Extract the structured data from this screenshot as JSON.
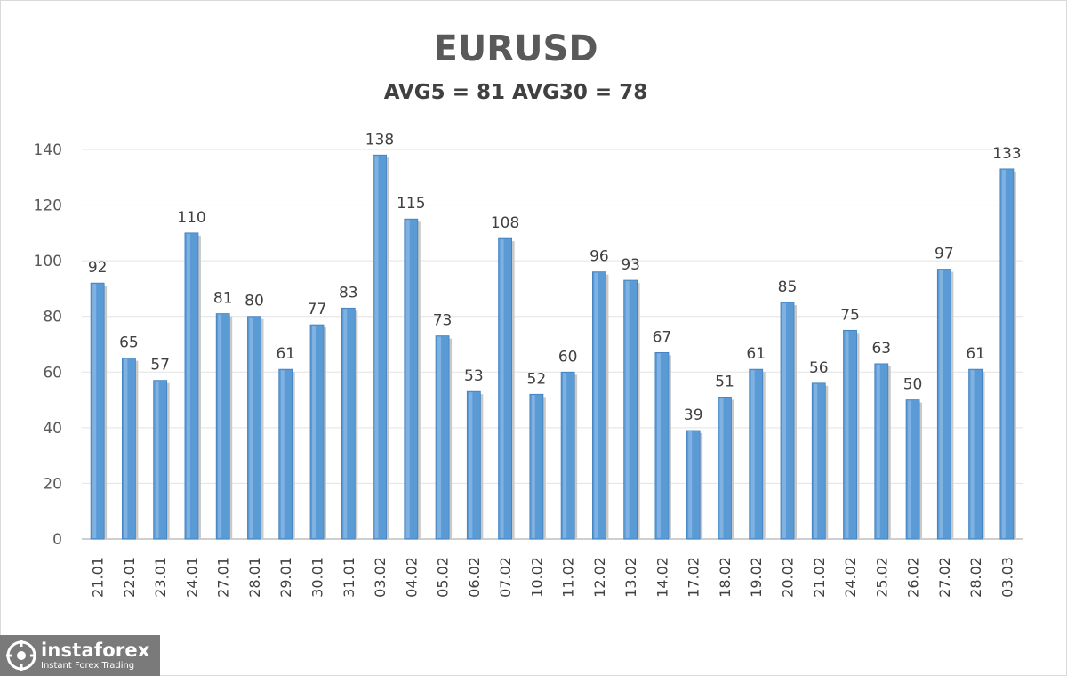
{
  "chart_data": {
    "type": "bar",
    "title": "EURUSD",
    "subtitle": "AVG5 = 81 AVG30 = 78",
    "categories": [
      "21.01",
      "22.01",
      "23.01",
      "24.01",
      "27.01",
      "28.01",
      "29.01",
      "30.01",
      "31.01",
      "03.02",
      "04.02",
      "05.02",
      "06.02",
      "07.02",
      "10.02",
      "11.02",
      "12.02",
      "13.02",
      "14.02",
      "17.02",
      "18.02",
      "19.02",
      "20.02",
      "21.02",
      "24.02",
      "25.02",
      "26.02",
      "27.02",
      "28.02",
      "03.03"
    ],
    "values": [
      92,
      65,
      57,
      110,
      81,
      80,
      61,
      77,
      83,
      138,
      115,
      73,
      53,
      108,
      52,
      60,
      96,
      93,
      67,
      39,
      51,
      61,
      85,
      56,
      75,
      63,
      50,
      97,
      61,
      133
    ],
    "ylim": [
      0,
      140
    ],
    "yticks": [
      0,
      20,
      40,
      60,
      80,
      100,
      120,
      140
    ],
    "grid": true,
    "bar_color": "#5b9bd5",
    "data_labels": true
  },
  "logo": {
    "name": "instaforex",
    "tagline": "Instant Forex Trading"
  }
}
